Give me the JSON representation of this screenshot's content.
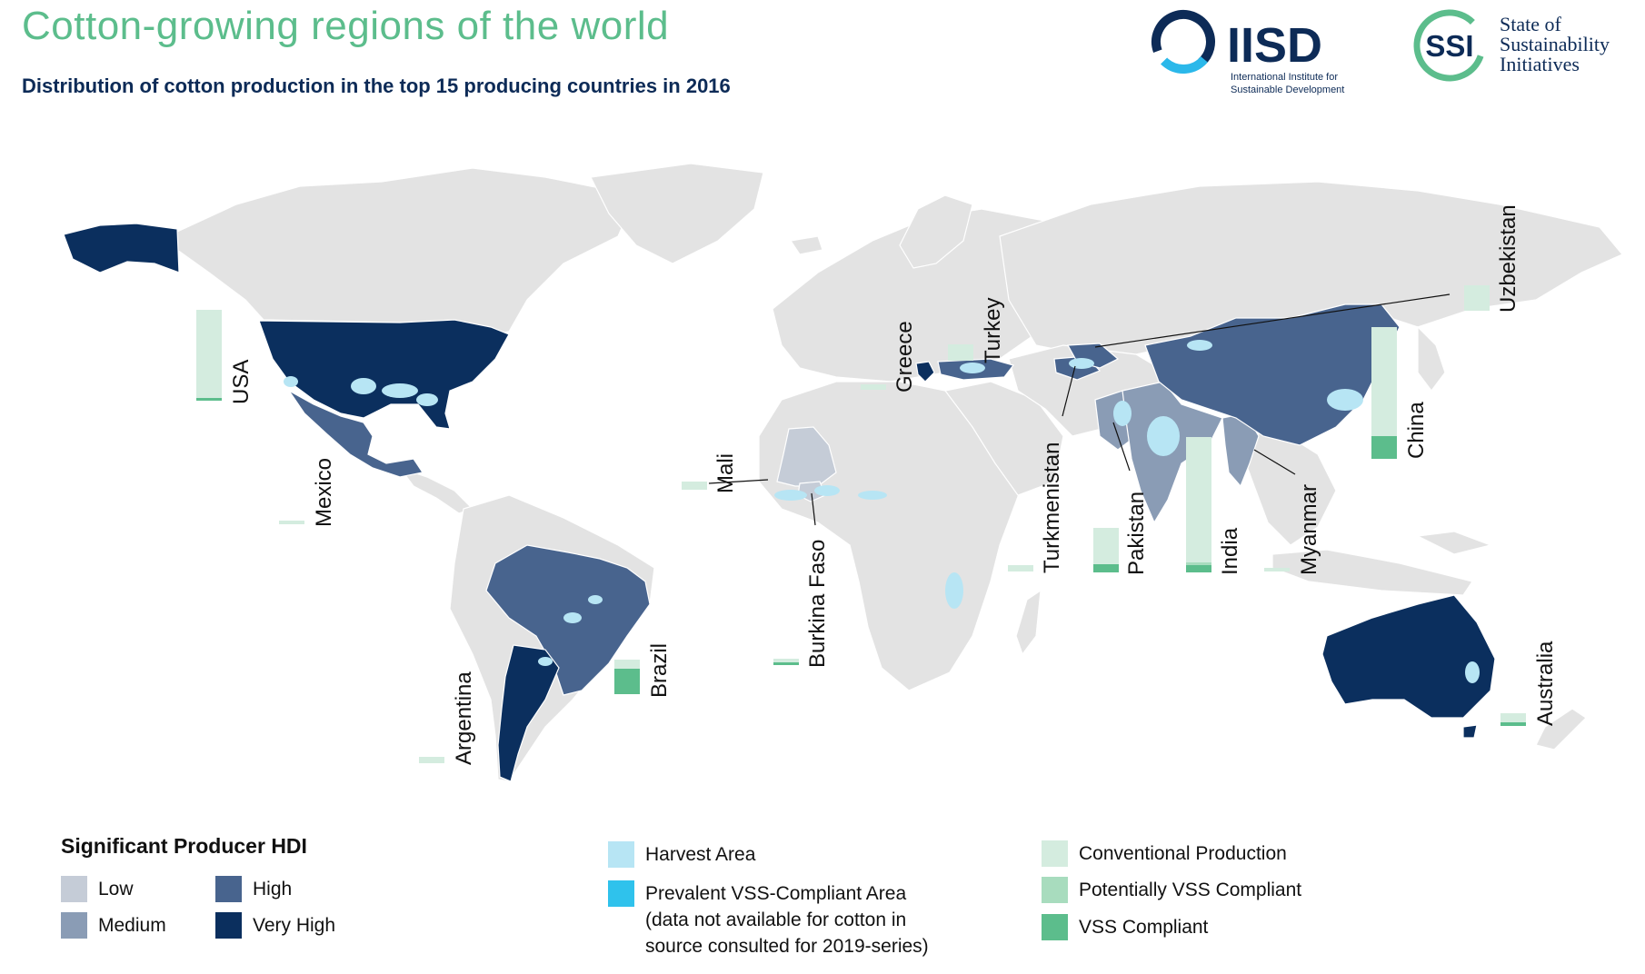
{
  "header": {
    "title": "Cotton-growing regions of the world",
    "subtitle": "Distribution of cotton production in the top 15 producing countries in 2016"
  },
  "logos": {
    "iisd": {
      "mark": "IISD",
      "name_line1": "International Institute for",
      "name_line2": "Sustainable Development",
      "color": "#0d2b57",
      "ring_color": "#2bb8ea"
    },
    "ssi": {
      "mark": "SSI",
      "name_line1": "State of",
      "name_line2": "Sustainability",
      "name_line3": "Initiatives",
      "color": "#0d2b57",
      "ring_color": "#5cbd8c"
    }
  },
  "colors": {
    "land": "#e3e3e3",
    "hdi_low": "#c5ccd7",
    "hdi_medium": "#8a9cb5",
    "hdi_high": "#48648e",
    "hdi_very_high": "#0b2f5e",
    "harvest_area": "#b7e5f4",
    "vss_area": "#2fc2ec",
    "conventional": "#d4ecdf",
    "potentially_vss": "#a8dcbe",
    "vss_compliant": "#5cbd8c"
  },
  "countries": [
    {
      "name": "USA",
      "hdi": "Very High"
    },
    {
      "name": "Mexico",
      "hdi": "High"
    },
    {
      "name": "Brazil",
      "hdi": "High"
    },
    {
      "name": "Argentina",
      "hdi": "Very High"
    },
    {
      "name": "Mali",
      "hdi": "Low"
    },
    {
      "name": "Burkina Faso",
      "hdi": "Low"
    },
    {
      "name": "Greece",
      "hdi": "Very High"
    },
    {
      "name": "Turkey",
      "hdi": "High"
    },
    {
      "name": "Turkmenistan",
      "hdi": "High"
    },
    {
      "name": "Pakistan",
      "hdi": "Medium"
    },
    {
      "name": "India",
      "hdi": "Medium"
    },
    {
      "name": "Myanmar",
      "hdi": "Medium"
    },
    {
      "name": "China",
      "hdi": "High"
    },
    {
      "name": "Uzbekistan",
      "hdi": "High"
    },
    {
      "name": "Australia",
      "hdi": "Very High"
    }
  ],
  "legend": {
    "hdi": {
      "title": "Significant Producer HDI",
      "low": "Low",
      "medium": "Medium",
      "high": "High",
      "very_high": "Very High"
    },
    "areas": {
      "harvest": "Harvest Area",
      "vss": "Prevalent VSS-Compliant Area\n(data not available for cotton in\nsource consulted for 2019-series)"
    },
    "production": {
      "conventional": "Conventional Production",
      "potentially_vss": "Potentially VSS Compliant",
      "vss_compliant": "VSS Compliant"
    }
  }
}
